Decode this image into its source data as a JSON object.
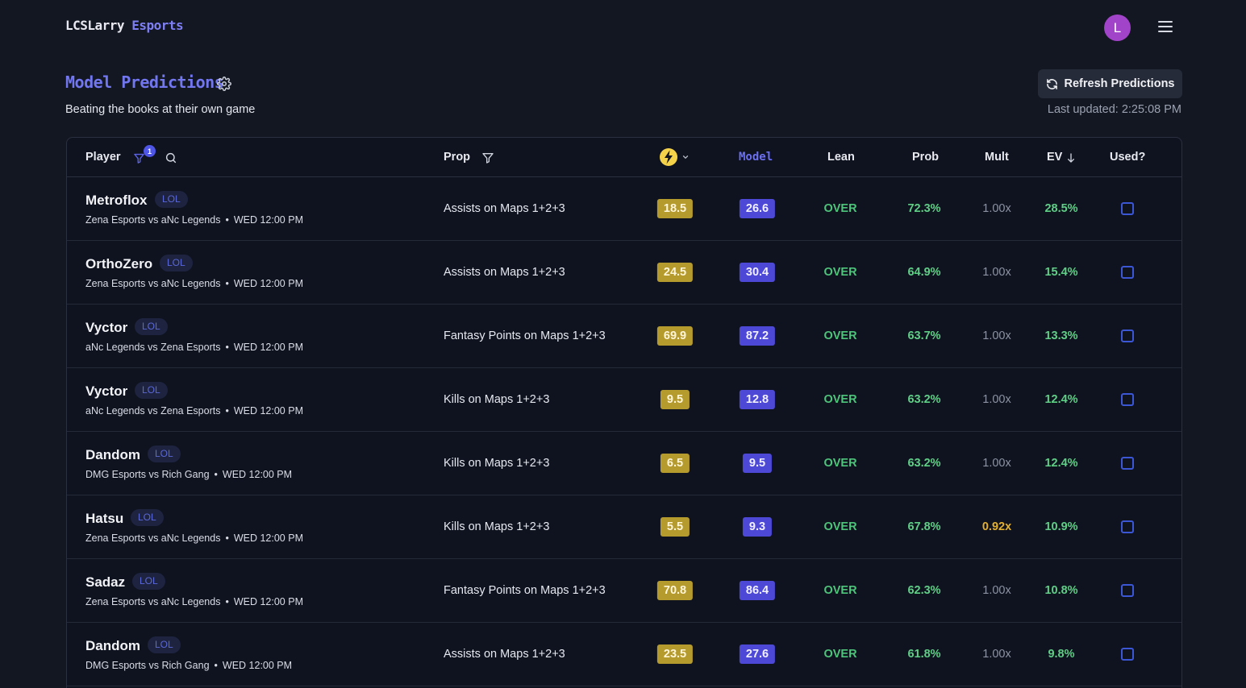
{
  "brand": {
    "part1": "LCSLarry",
    "part2": "Esports"
  },
  "user": {
    "avatar_initial": "L"
  },
  "header": {
    "title": "Model Predictions",
    "subtitle": "Beating the books at their own game",
    "refresh_label": "Refresh Predictions",
    "last_updated": "Last updated: 2:25:08 PM"
  },
  "table": {
    "columns": {
      "player": "Player",
      "player_filter_count": "1",
      "prop": "Prop",
      "model": "Model",
      "lean": "Lean",
      "prob": "Prob",
      "mult": "Mult",
      "ev": "EV",
      "used": "Used?"
    },
    "rows": [
      {
        "player": "Metroflox",
        "game": "LOL",
        "match": "Zena Esports vs aNc Legends",
        "time": "WED 12:00 PM",
        "prop": "Assists on Maps 1+2+3",
        "line": "18.5",
        "model": "26.6",
        "lean": "OVER",
        "prob": "72.3%",
        "mult": "1.00x",
        "ev": "28.5%"
      },
      {
        "player": "OrthoZero",
        "game": "LOL",
        "match": "Zena Esports vs aNc Legends",
        "time": "WED 12:00 PM",
        "prop": "Assists on Maps 1+2+3",
        "line": "24.5",
        "model": "30.4",
        "lean": "OVER",
        "prob": "64.9%",
        "mult": "1.00x",
        "ev": "15.4%"
      },
      {
        "player": "Vyctor",
        "game": "LOL",
        "match": "aNc Legends vs Zena Esports",
        "time": "WED 12:00 PM",
        "prop": "Fantasy Points on Maps 1+2+3",
        "line": "69.9",
        "model": "87.2",
        "lean": "OVER",
        "prob": "63.7%",
        "mult": "1.00x",
        "ev": "13.3%"
      },
      {
        "player": "Vyctor",
        "game": "LOL",
        "match": "aNc Legends vs Zena Esports",
        "time": "WED 12:00 PM",
        "prop": "Kills on Maps 1+2+3",
        "line": "9.5",
        "model": "12.8",
        "lean": "OVER",
        "prob": "63.2%",
        "mult": "1.00x",
        "ev": "12.4%"
      },
      {
        "player": "Dandom",
        "game": "LOL",
        "match": "DMG Esports vs Rich Gang",
        "time": "WED 12:00 PM",
        "prop": "Kills on Maps 1+2+3",
        "line": "6.5",
        "model": "9.5",
        "lean": "OVER",
        "prob": "63.2%",
        "mult": "1.00x",
        "ev": "12.4%"
      },
      {
        "player": "Hatsu",
        "game": "LOL",
        "match": "Zena Esports vs aNc Legends",
        "time": "WED 12:00 PM",
        "prop": "Kills on Maps 1+2+3",
        "line": "5.5",
        "model": "9.3",
        "lean": "OVER",
        "prob": "67.8%",
        "mult": "0.92x",
        "ev": "10.9%"
      },
      {
        "player": "Sadaz",
        "game": "LOL",
        "match": "Zena Esports vs aNc Legends",
        "time": "WED 12:00 PM",
        "prop": "Fantasy Points on Maps 1+2+3",
        "line": "70.8",
        "model": "86.4",
        "lean": "OVER",
        "prob": "62.3%",
        "mult": "1.00x",
        "ev": "10.8%"
      },
      {
        "player": "Dandom",
        "game": "LOL",
        "match": "DMG Esports vs Rich Gang",
        "time": "WED 12:00 PM",
        "prop": "Assists on Maps 1+2+3",
        "line": "23.5",
        "model": "27.6",
        "lean": "OVER",
        "prob": "61.8%",
        "mult": "1.00x",
        "ev": "9.8%"
      }
    ]
  }
}
